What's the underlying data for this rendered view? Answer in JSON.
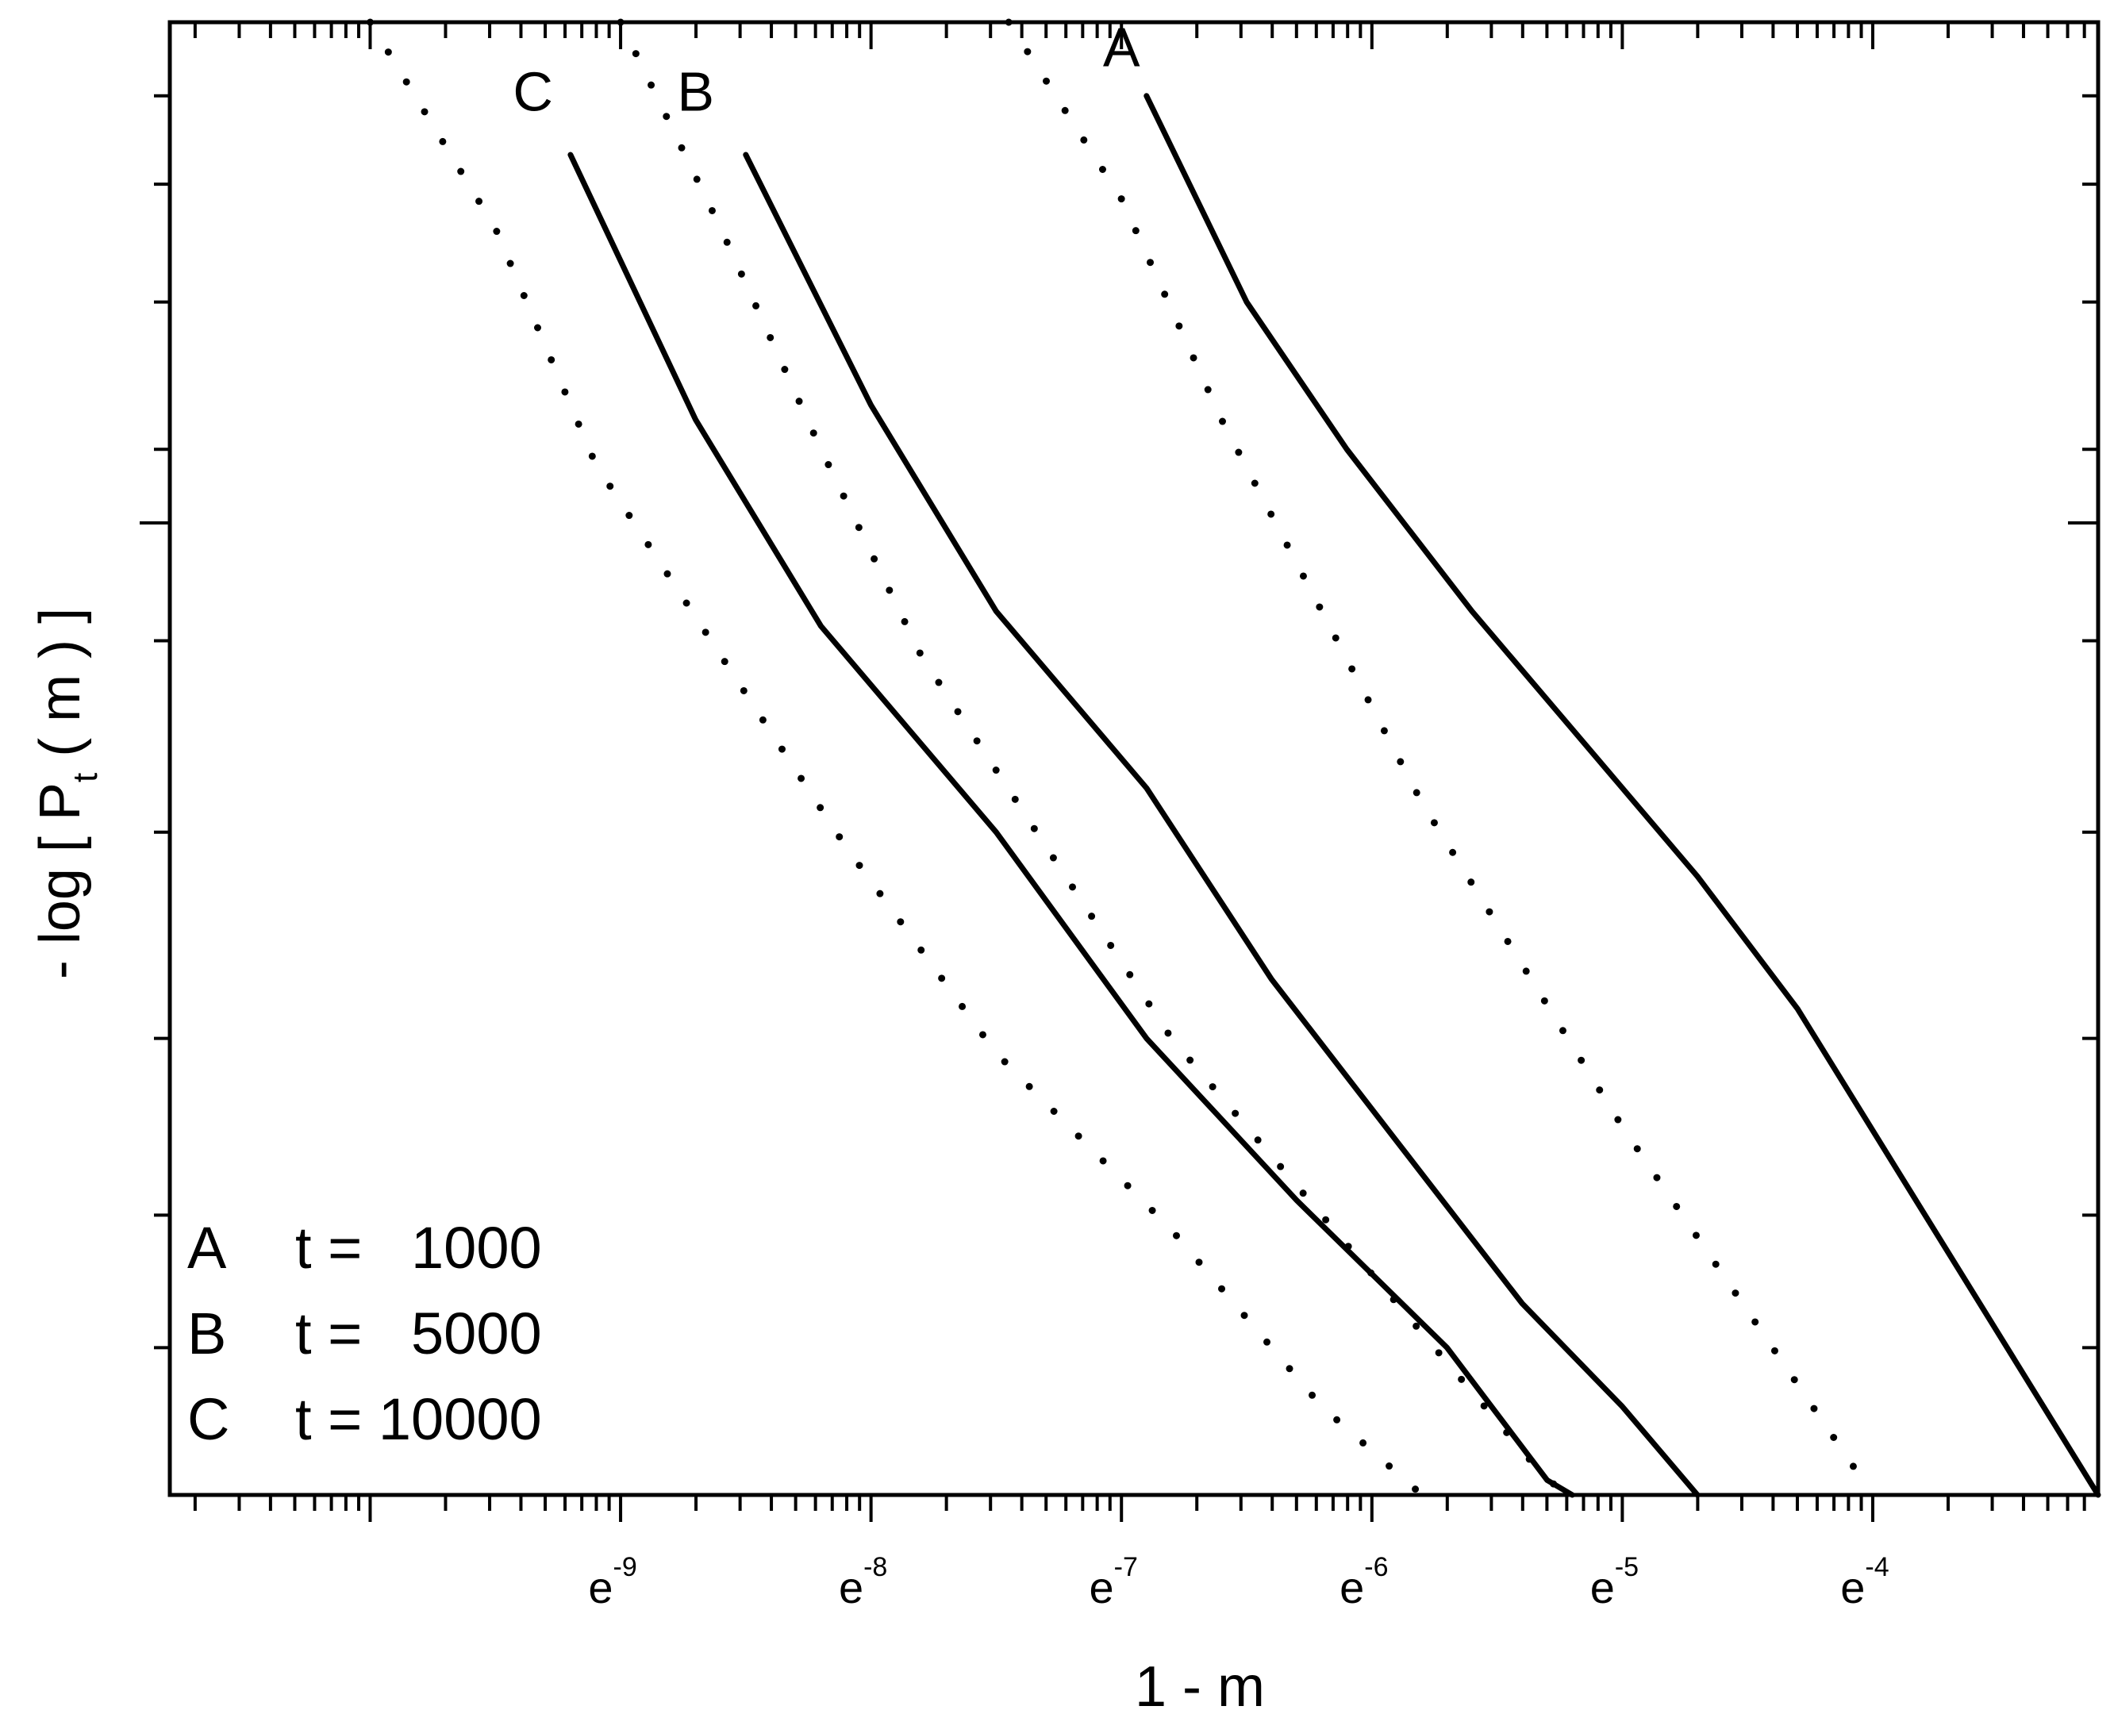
{
  "chart_data": {
    "type": "line",
    "title": "",
    "xlabel": "1 - m",
    "ylabel": {
      "prefix": "- log [ P",
      "subscript": "t",
      "suffix": " ( m ) ]"
    },
    "x_scale": "log-e",
    "xlim_exponent": [
      -10.8,
      -3.1
    ],
    "ylim_log": [
      0,
      1
    ],
    "x_tick_labels": [
      {
        "base": "e",
        "exp": "-9",
        "value_exp": -9
      },
      {
        "base": "e",
        "exp": "-8",
        "value_exp": -8
      },
      {
        "base": "e",
        "exp": "-7",
        "value_exp": -7
      },
      {
        "base": "e",
        "exp": "-6",
        "value_exp": -6
      },
      {
        "base": "e",
        "exp": "-5",
        "value_exp": -5
      },
      {
        "base": "e",
        "exp": "-4",
        "value_exp": -4
      }
    ],
    "curve_labels": [
      {
        "series": "A",
        "text": "A",
        "x_exp": -7.0,
        "y": 0.97
      },
      {
        "series": "B",
        "text": "B",
        "x_exp": -8.7,
        "y": 0.94
      },
      {
        "series": "C",
        "text": "C",
        "x_exp": -9.35,
        "y": 0.94
      }
    ],
    "legend": {
      "placement": "bottom-left",
      "entries": [
        {
          "key": "A",
          "text": "t =   1000"
        },
        {
          "key": "B",
          "text": "t =   5000"
        },
        {
          "key": "C",
          "text": "t = 10000"
        }
      ]
    },
    "series": [
      {
        "name": "A",
        "style": "solid",
        "points": [
          [
            -6.9,
            0.95
          ],
          [
            -6.5,
            0.81
          ],
          [
            -6.1,
            0.71
          ],
          [
            -5.6,
            0.6
          ],
          [
            -5.2,
            0.52
          ],
          [
            -4.7,
            0.42
          ],
          [
            -4.3,
            0.33
          ],
          [
            -3.9,
            0.22
          ],
          [
            -3.5,
            0.11
          ],
          [
            -3.1,
            0.0
          ]
        ]
      },
      {
        "name": "A",
        "style": "dotted",
        "points": [
          [
            -7.45,
            1.0
          ],
          [
            -7.0,
            0.88
          ],
          [
            -6.6,
            0.73
          ],
          [
            -6.2,
            0.6
          ],
          [
            -5.8,
            0.47
          ],
          [
            -5.4,
            0.36
          ],
          [
            -5.0,
            0.25
          ],
          [
            -4.6,
            0.15
          ],
          [
            -4.2,
            0.05
          ],
          [
            -4.0,
            0.0
          ]
        ]
      },
      {
        "name": "B",
        "style": "solid",
        "points": [
          [
            -8.5,
            0.91
          ],
          [
            -8.0,
            0.74
          ],
          [
            -7.5,
            0.6
          ],
          [
            -6.9,
            0.48
          ],
          [
            -6.4,
            0.35
          ],
          [
            -5.9,
            0.24
          ],
          [
            -5.4,
            0.13
          ],
          [
            -5.0,
            0.06
          ],
          [
            -4.7,
            0.0
          ]
        ]
      },
      {
        "name": "B",
        "style": "dotted",
        "points": [
          [
            -9.0,
            1.0
          ],
          [
            -8.6,
            0.86
          ],
          [
            -8.2,
            0.71
          ],
          [
            -7.8,
            0.57
          ],
          [
            -7.3,
            0.44
          ],
          [
            -6.8,
            0.31
          ],
          [
            -6.2,
            0.19
          ],
          [
            -5.7,
            0.09
          ],
          [
            -5.3,
            0.01
          ],
          [
            -5.2,
            0.0
          ]
        ]
      },
      {
        "name": "C",
        "style": "solid",
        "points": [
          [
            -9.2,
            0.91
          ],
          [
            -8.7,
            0.73
          ],
          [
            -8.2,
            0.59
          ],
          [
            -7.5,
            0.45
          ],
          [
            -6.9,
            0.31
          ],
          [
            -6.3,
            0.2
          ],
          [
            -5.7,
            0.1
          ],
          [
            -5.3,
            0.01
          ],
          [
            -5.2,
            0.0
          ]
        ]
      },
      {
        "name": "C",
        "style": "dotted",
        "points": [
          [
            -10.0,
            1.0
          ],
          [
            -9.5,
            0.86
          ],
          [
            -9.1,
            0.7
          ],
          [
            -8.6,
            0.57
          ],
          [
            -8.1,
            0.44
          ],
          [
            -7.5,
            0.3
          ],
          [
            -6.8,
            0.18
          ],
          [
            -6.2,
            0.06
          ],
          [
            -5.8,
            0.0
          ]
        ]
      }
    ]
  }
}
